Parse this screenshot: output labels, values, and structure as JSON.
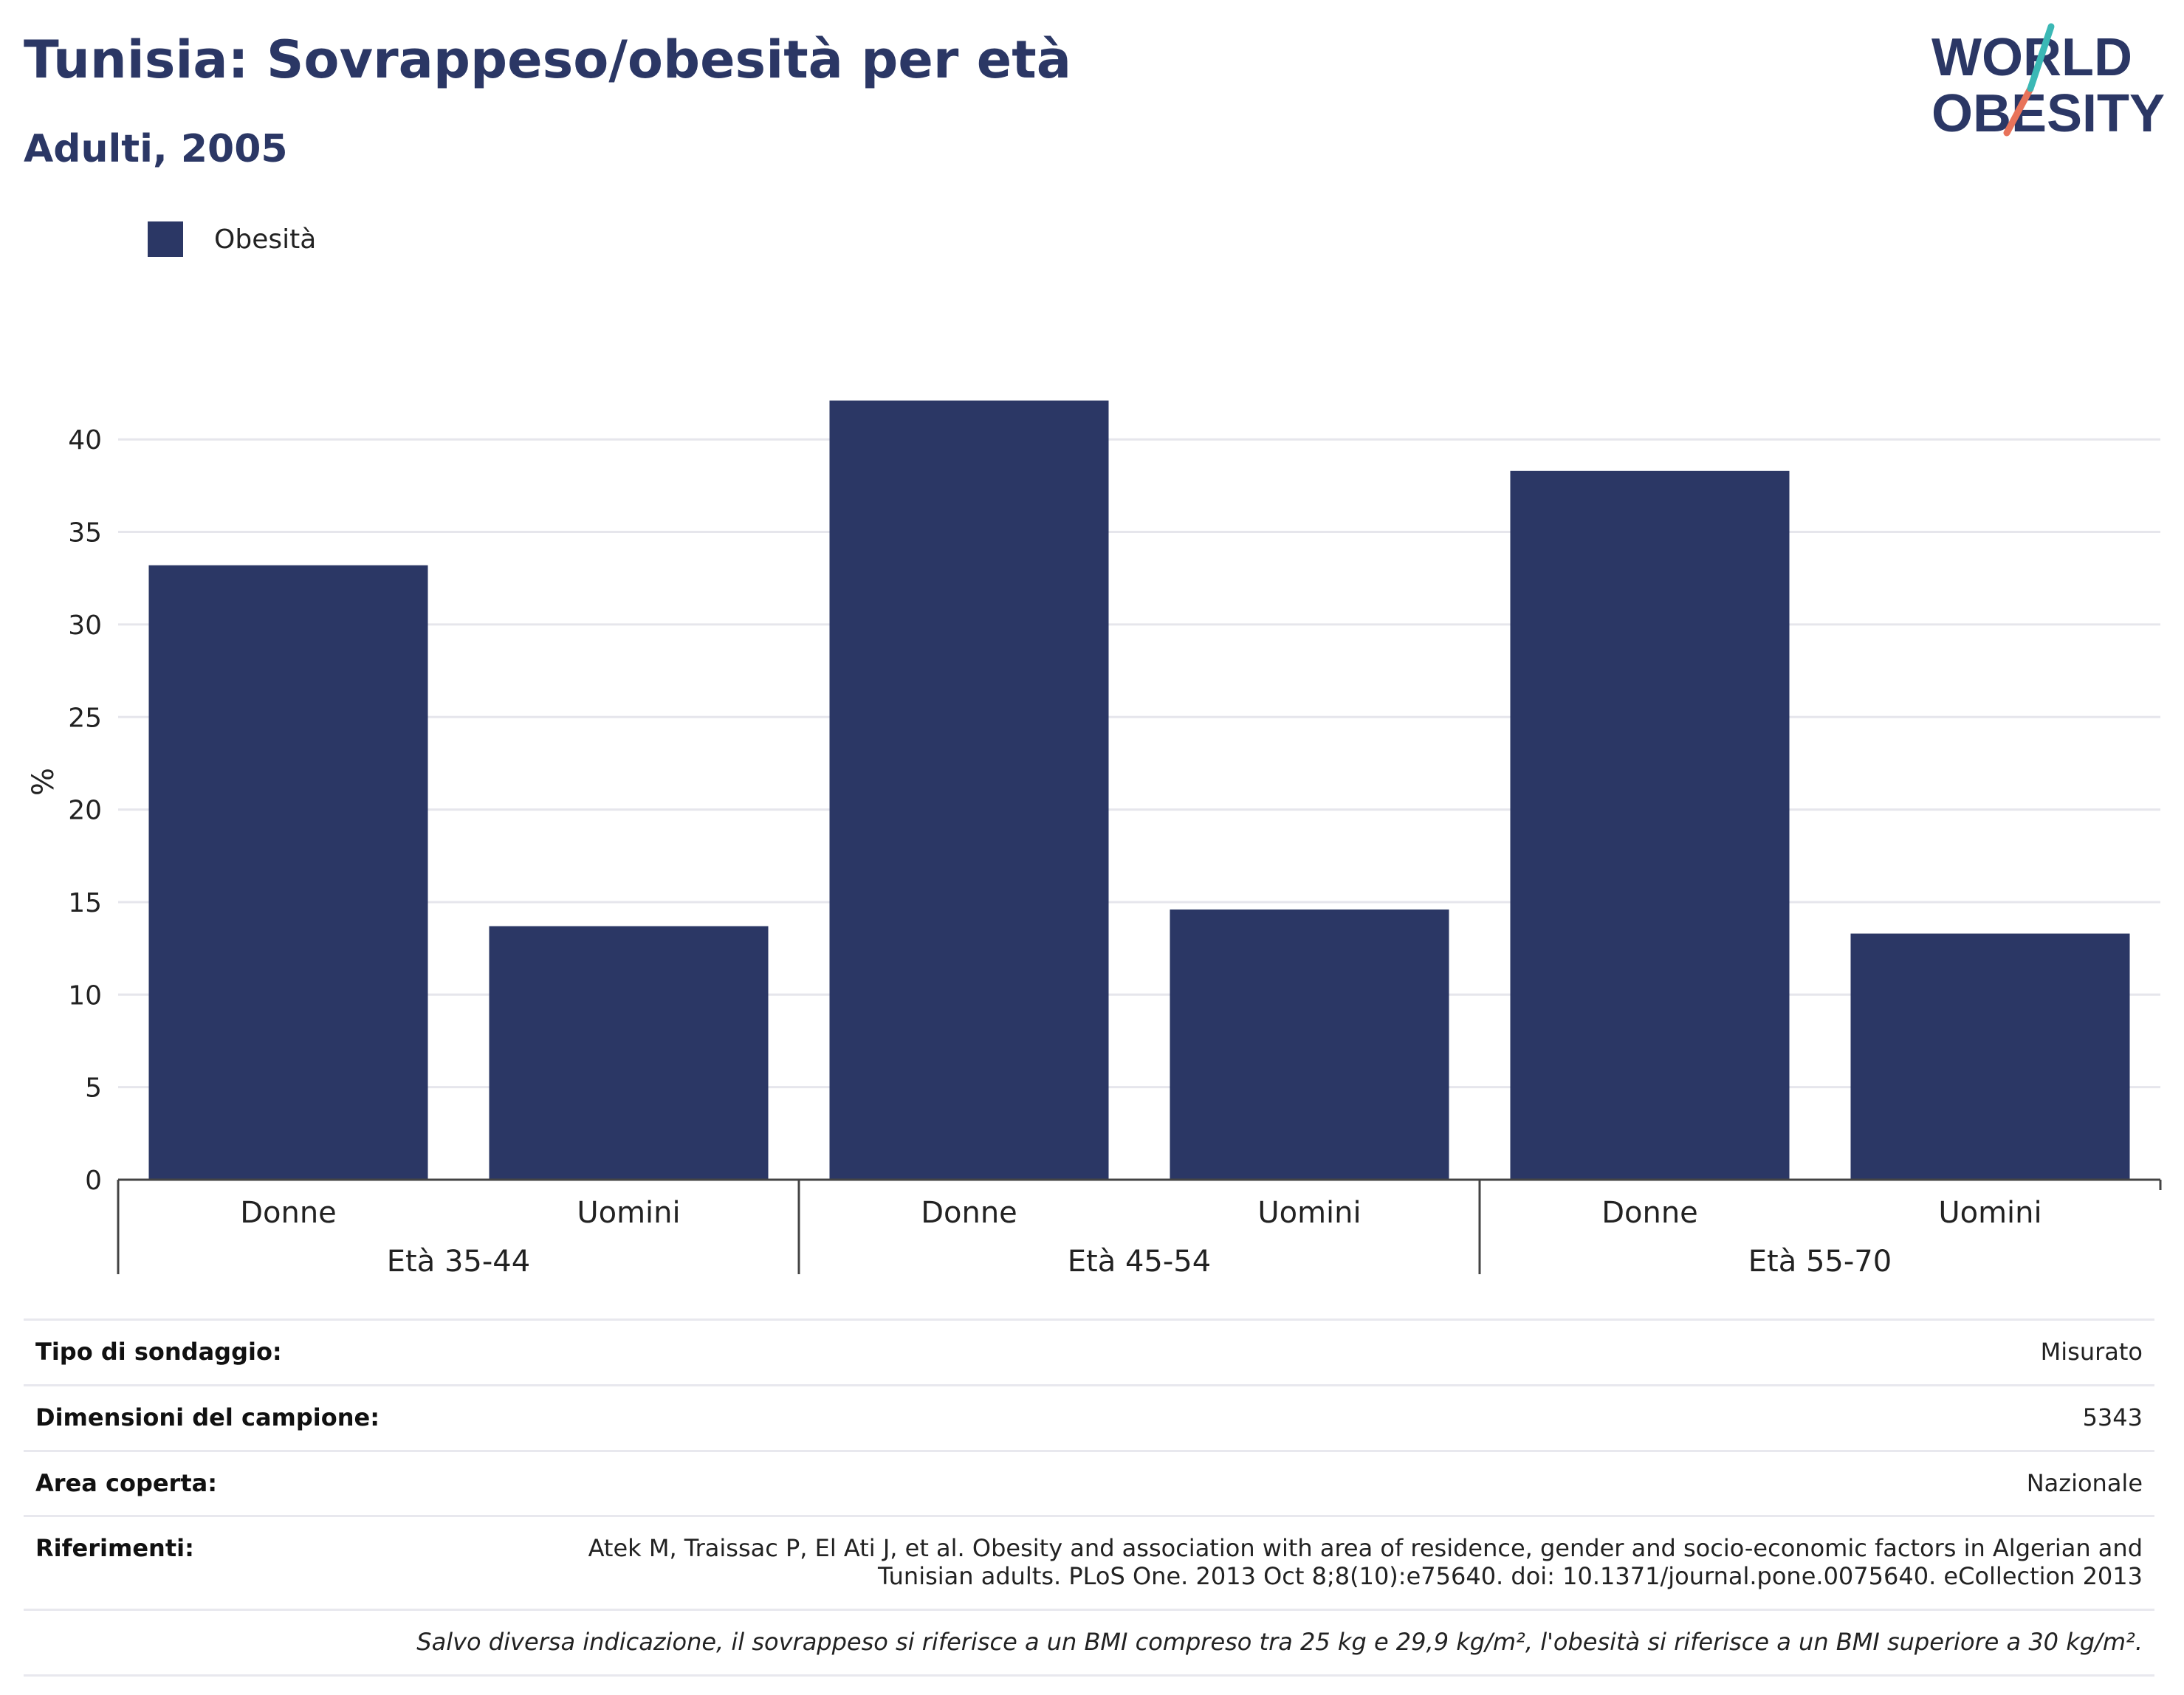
{
  "header": {
    "title": "Tunisia: Sovrappeso/obesità per età",
    "subtitle": "Adulti, 2005"
  },
  "logo": {
    "line1": "WORLD",
    "line2": "OBESITY"
  },
  "legend": {
    "label": "Obesità",
    "color": "#2b3765"
  },
  "chart_data": {
    "type": "bar",
    "title": "Tunisia: Sovrappeso/obesità per età",
    "subtitle": "Adulti, 2005",
    "ylabel": "%",
    "ylim": [
      0,
      43
    ],
    "yticks": [
      0,
      5,
      10,
      15,
      20,
      25,
      30,
      35,
      40
    ],
    "grid": true,
    "legend_position": "top-left",
    "groups": [
      {
        "label": "Età 35-44",
        "categories": [
          "Donne",
          "Uomini"
        ]
      },
      {
        "label": "Età 45-54",
        "categories": [
          "Donne",
          "Uomini"
        ]
      },
      {
        "label": "Età 55-70",
        "categories": [
          "Donne",
          "Uomini"
        ]
      }
    ],
    "series": [
      {
        "name": "Obesità",
        "color": "#2b3765",
        "values": [
          33.2,
          13.7,
          42.1,
          14.6,
          38.3,
          13.3
        ]
      }
    ]
  },
  "info": {
    "rows": [
      {
        "label": "Tipo di sondaggio:",
        "value": "Misurato"
      },
      {
        "label": "Dimensioni del campione:",
        "value": "5343"
      },
      {
        "label": "Area coperta:",
        "value": "Nazionale"
      },
      {
        "label": "Riferimenti:",
        "value": "Atek M, Traissac P, El Ati J, et al. Obesity and association with area of residence, gender and socio-economic factors in Algerian and Tunisian adults. PLoS One. 2013 Oct 8;8(10):e75640. doi: 10.1371/journal.pone.0075640. eCollection 2013"
      }
    ],
    "note": "Salvo diversa indicazione, il sovrappeso si riferisce a un BMI compreso tra 25 kg e 29,9 kg/m², l'obesità si riferisce a un BMI superiore a 30 kg/m²."
  },
  "colors": {
    "accent": "#2b3765",
    "grid": "#e6e6ec",
    "logo_teal": "#3bb8b5",
    "logo_coral": "#e8735a"
  }
}
